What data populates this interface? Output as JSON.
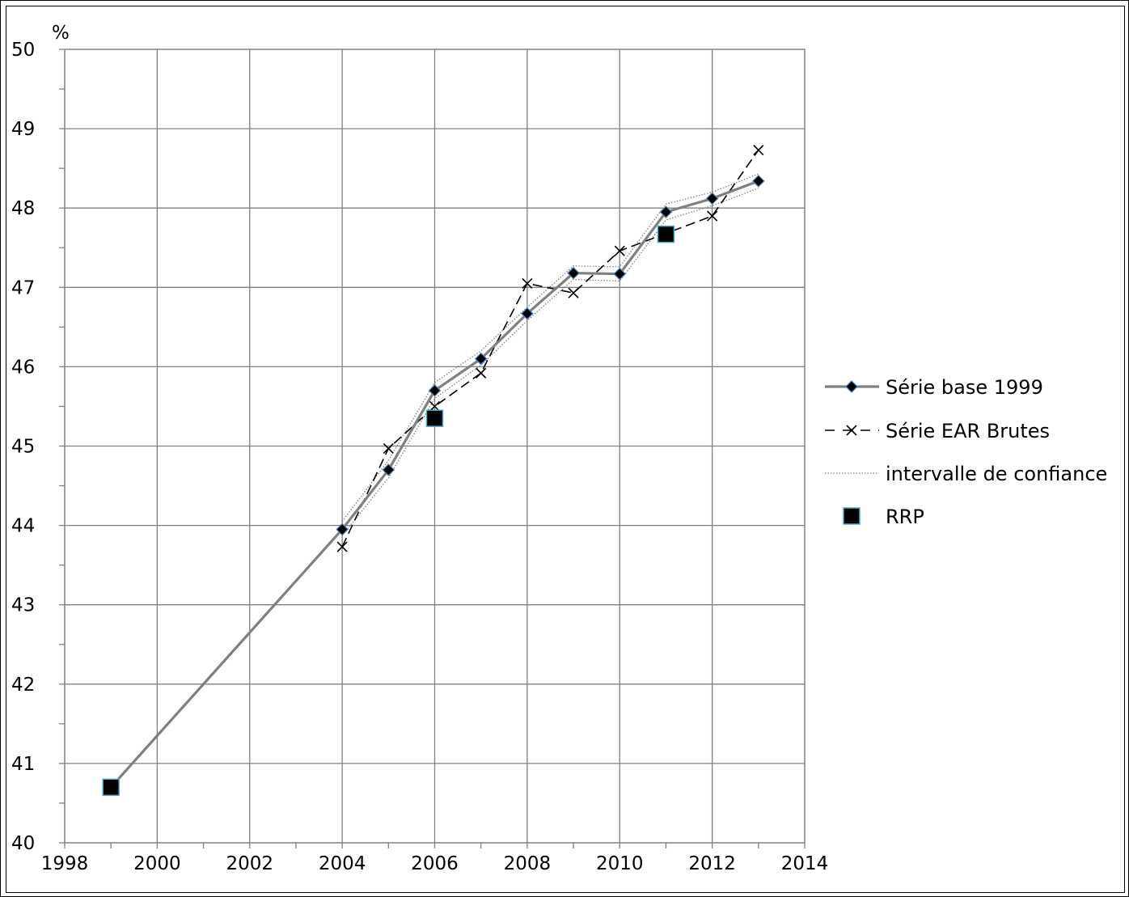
{
  "chart_data": {
    "type": "line",
    "ylabel": "%",
    "xlim": [
      1998,
      2014
    ],
    "ylim": [
      40,
      50
    ],
    "x_ticks": [
      "1998",
      "2000",
      "2002",
      "2004",
      "2006",
      "2008",
      "2010",
      "2012",
      "2014"
    ],
    "y_ticks": [
      "40",
      "41",
      "42",
      "43",
      "44",
      "45",
      "46",
      "47",
      "48",
      "49",
      "50"
    ],
    "grid": true,
    "legend_position": "right",
    "series": [
      {
        "name": "Série base 1999",
        "style": "solid-diamond",
        "color": "#808080",
        "marker_color": "#000000",
        "points": [
          [
            1999,
            40.7
          ],
          [
            2004,
            43.95
          ],
          [
            2005,
            44.7
          ],
          [
            2006,
            45.7
          ],
          [
            2007,
            46.1
          ],
          [
            2008,
            46.67
          ],
          [
            2009,
            47.18
          ],
          [
            2010,
            47.17
          ],
          [
            2011,
            47.95
          ],
          [
            2012,
            48.12
          ],
          [
            2013,
            48.34
          ]
        ]
      },
      {
        "name": "Série EAR Brutes",
        "style": "dashed-x",
        "color": "#000000",
        "points": [
          [
            2004,
            43.73
          ],
          [
            2005,
            44.97
          ],
          [
            2006,
            45.5
          ],
          [
            2007,
            45.92
          ],
          [
            2008,
            47.05
          ],
          [
            2009,
            46.93
          ],
          [
            2010,
            47.46
          ],
          [
            2011,
            47.68
          ],
          [
            2012,
            47.9
          ],
          [
            2013,
            48.73
          ]
        ]
      },
      {
        "name": "intervalle de confiance",
        "style": "dotted",
        "color": "#808080",
        "upper": [
          [
            2004,
            44.05
          ],
          [
            2005,
            44.82
          ],
          [
            2006,
            45.8
          ],
          [
            2007,
            46.2
          ],
          [
            2008,
            46.75
          ],
          [
            2009,
            47.27
          ],
          [
            2010,
            47.26
          ],
          [
            2011,
            48.05
          ],
          [
            2012,
            48.2
          ],
          [
            2013,
            48.43
          ]
        ],
        "lower": [
          [
            2004,
            43.87
          ],
          [
            2005,
            44.6
          ],
          [
            2006,
            45.6
          ],
          [
            2007,
            46.02
          ],
          [
            2008,
            46.58
          ],
          [
            2009,
            47.1
          ],
          [
            2010,
            47.08
          ],
          [
            2011,
            47.85
          ],
          [
            2012,
            48.03
          ],
          [
            2013,
            48.25
          ]
        ]
      },
      {
        "name": "RRP",
        "style": "square-marker",
        "color": "#000000",
        "edge_color": "#4bacc6",
        "points": [
          [
            1999,
            40.7
          ],
          [
            2006,
            45.35
          ],
          [
            2011,
            47.67
          ]
        ]
      }
    ]
  }
}
